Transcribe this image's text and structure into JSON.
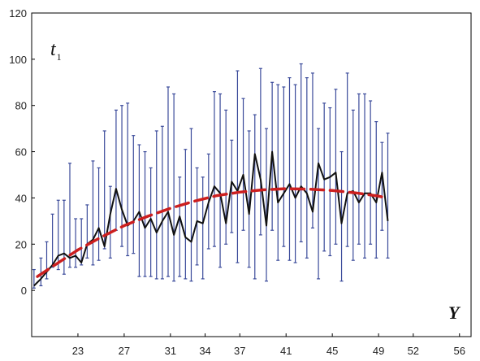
{
  "chart_data": {
    "type": "line",
    "title": "",
    "xlabel": "Y",
    "ylabel_main": "t",
    "ylabel_sub": "1",
    "ylim": [
      -20,
      120
    ],
    "yticks": [
      0,
      20,
      40,
      60,
      80,
      100,
      120
    ],
    "xlim": [
      19,
      57
    ],
    "xticks": [
      23,
      27,
      31,
      34,
      37,
      41,
      45,
      49,
      52,
      56
    ],
    "grid": false,
    "legend": "none",
    "colors": {
      "mean_line": "#111111",
      "trend_line": "#cc1f1f",
      "error_bars": "#3a4a9a"
    },
    "series": [
      {
        "style": "solid",
        "x": [
          19.2,
          19.8,
          20.3,
          20.8,
          21.3,
          21.8,
          22.3,
          22.8,
          23.3,
          23.8,
          24.3,
          24.8,
          25.3,
          25.8,
          26.3,
          26.8,
          27.3,
          27.8,
          28.3,
          28.8,
          29.3,
          29.8,
          30.3,
          30.8,
          31.3,
          31.8,
          32.3,
          32.8,
          33.3,
          33.8,
          34.3,
          34.8,
          35.3,
          35.8,
          36.3,
          36.8,
          37.3,
          37.8,
          38.3,
          38.8,
          39.3,
          39.8,
          40.3,
          40.8,
          41.3,
          41.8,
          42.3,
          42.8,
          43.3,
          43.8,
          44.3,
          44.8,
          45.3,
          45.8,
          46.3,
          46.8,
          47.3,
          47.8,
          48.3,
          48.8,
          49.3,
          49.8
        ],
        "y": [
          2,
          5,
          8,
          11,
          15,
          16,
          14,
          15,
          12,
          20,
          22,
          27,
          19,
          33,
          44,
          35,
          28,
          30,
          34,
          27,
          31,
          25,
          30,
          34,
          24,
          32,
          23,
          21,
          30,
          29,
          38,
          45,
          42,
          29,
          47,
          43,
          50,
          33,
          59,
          48,
          28,
          60,
          38,
          42,
          46,
          40,
          45,
          42,
          34,
          55,
          48,
          49,
          51,
          29,
          42,
          43,
          38,
          42,
          42,
          38,
          51,
          30
        ]
      },
      {
        "style": "dashed",
        "x": [
          19.5,
          21,
          23,
          25,
          27,
          29,
          31,
          33,
          35,
          37,
          39,
          41,
          43,
          45,
          47,
          49,
          49.8
        ],
        "y": [
          6,
          11,
          17.5,
          23,
          28,
          32,
          35.5,
          38.5,
          41,
          42.5,
          43.5,
          44,
          43.8,
          43.2,
          42.2,
          40.8,
          39.8
        ]
      }
    ],
    "error_bars": {
      "low": [
        1,
        2,
        5,
        10,
        9,
        7,
        10,
        10,
        11,
        14,
        11,
        13,
        18,
        14,
        26,
        19,
        15,
        16,
        6,
        6,
        6,
        5,
        5,
        6,
        4,
        6,
        5,
        4,
        11,
        5,
        18,
        19,
        10,
        20,
        25,
        12,
        26,
        10,
        5,
        24,
        4,
        26,
        13,
        19,
        13,
        12,
        21,
        14,
        27,
        5,
        17,
        15,
        20,
        4,
        19,
        13,
        20,
        14,
        20,
        14,
        26,
        14
      ],
      "high": [
        9,
        14,
        21,
        33,
        39,
        39,
        55,
        31,
        31,
        37,
        56,
        53,
        69,
        45,
        78,
        80,
        81,
        67,
        63,
        60,
        53,
        69,
        71,
        88,
        85,
        49,
        61,
        70,
        53,
        49,
        59,
        86,
        85,
        78,
        65,
        95,
        83,
        69,
        76,
        96,
        70,
        90,
        89,
        88,
        92,
        89,
        98,
        92,
        94,
        70,
        81,
        79,
        87,
        60,
        94,
        78,
        85,
        85,
        82,
        73,
        64,
        68
      ]
    }
  }
}
